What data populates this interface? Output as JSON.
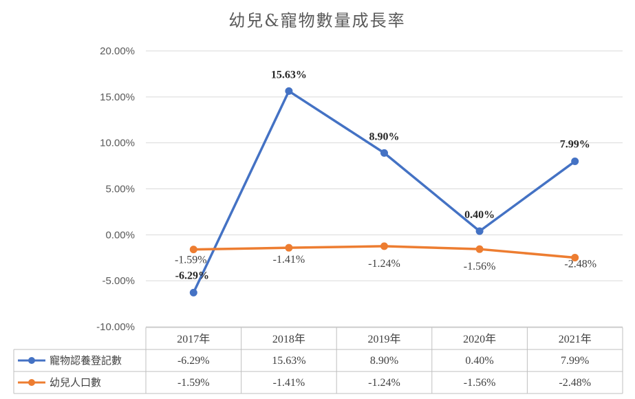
{
  "chart_data": {
    "type": "line",
    "title": "幼兒&寵物數量成長率",
    "categories": [
      "2017年",
      "2018年",
      "2019年",
      "2020年",
      "2021年"
    ],
    "ylim": [
      -10,
      20
    ],
    "yticks": [
      "20.00%",
      "15.00%",
      "10.00%",
      "5.00%",
      "0.00%",
      "-5.00%",
      "-10.00%"
    ],
    "grid": true,
    "legend": "data-table",
    "series": [
      {
        "name": "寵物認養登記數",
        "color": "#4472C4",
        "values": [
          -6.29,
          15.63,
          8.9,
          0.4,
          7.99
        ],
        "labels": [
          "-6.29%",
          "15.63%",
          "8.90%",
          "0.40%",
          "7.99%"
        ]
      },
      {
        "name": "幼兒人口數",
        "color": "#ED7D31",
        "values": [
          -1.59,
          -1.41,
          -1.24,
          -1.56,
          -2.48
        ],
        "labels": [
          "-1.59%",
          "-1.41%",
          "-1.24%",
          "-1.56%",
          "-2.48%"
        ]
      }
    ]
  }
}
